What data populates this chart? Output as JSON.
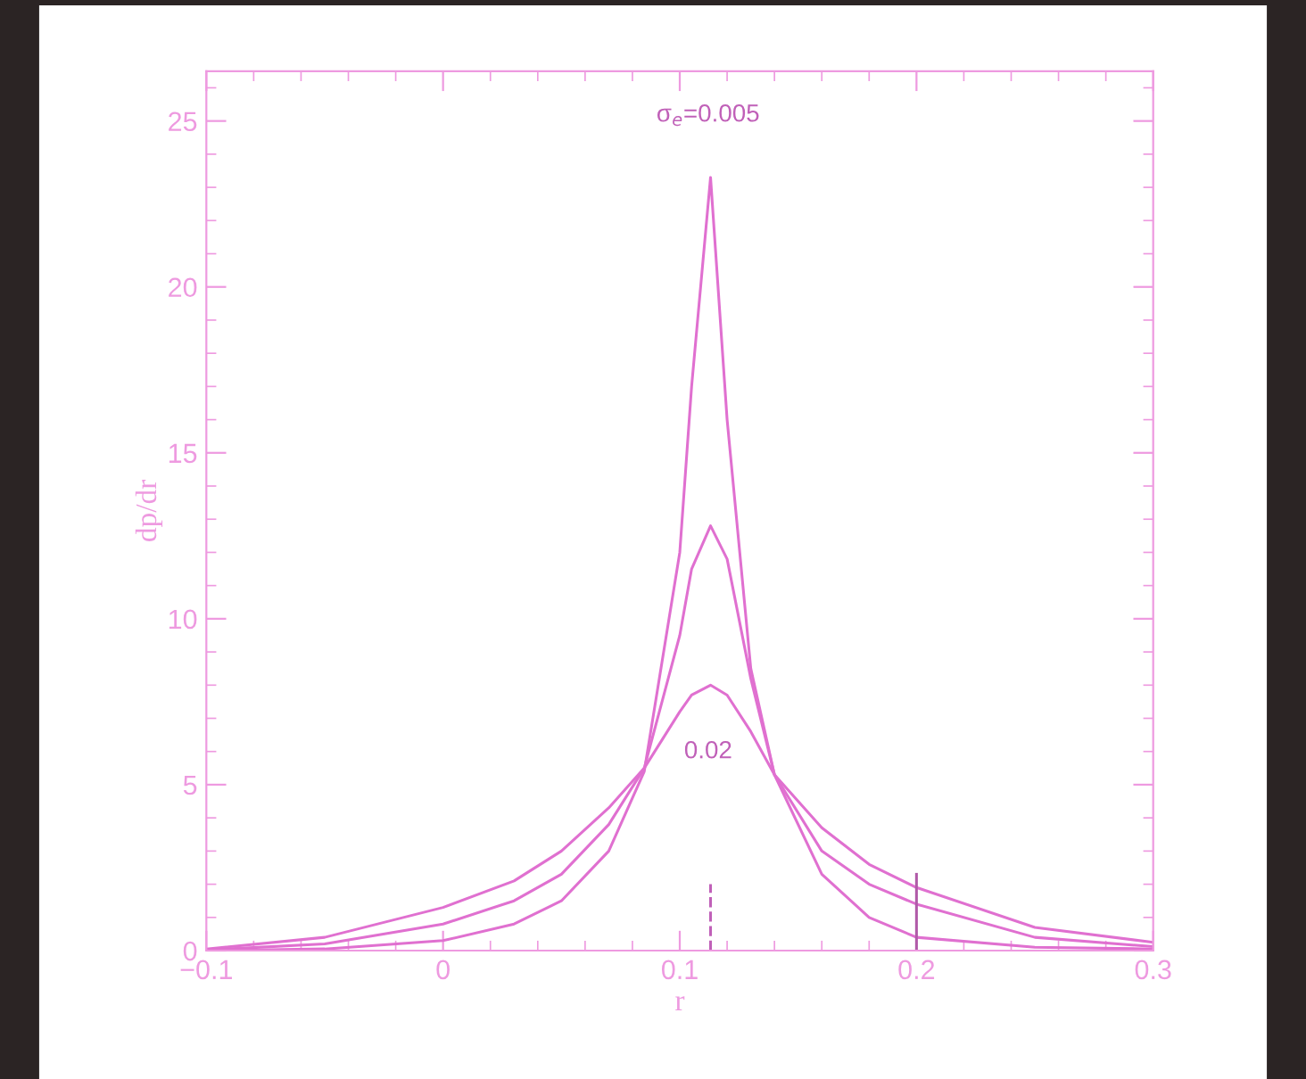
{
  "chart_data": {
    "type": "line",
    "xlabel": "r",
    "ylabel": "dp/dr",
    "xlim": [
      -0.1,
      0.3
    ],
    "ylim": [
      0,
      26.5
    ],
    "xticks": [
      {
        "value": -0.1,
        "label": "−0.1"
      },
      0,
      0.1,
      0.2,
      0.3
    ],
    "yticks": [
      0,
      5,
      10,
      15,
      20,
      25
    ],
    "grid": false,
    "marker": "none",
    "line_style": "solid",
    "series": [
      {
        "color": "#e070d0",
        "x": [
          -0.1,
          -0.05,
          0,
          0.03,
          0.05,
          0.07,
          0.085,
          0.1,
          0.105,
          0.113,
          0.12,
          0.13,
          0.14,
          0.16,
          0.18,
          0.2,
          0.25,
          0.3
        ],
        "values": [
          0,
          0.05,
          0.3,
          0.8,
          1.5,
          3.0,
          5.4,
          12,
          17,
          23.3,
          16,
          8.5,
          5.3,
          2.3,
          1.0,
          0.4,
          0.1,
          0.05
        ]
      },
      {
        "color": "#e070d0",
        "x": [
          -0.1,
          -0.05,
          0,
          0.03,
          0.05,
          0.07,
          0.085,
          0.1,
          0.105,
          0.113,
          0.12,
          0.13,
          0.14,
          0.16,
          0.18,
          0.2,
          0.25,
          0.3
        ],
        "values": [
          0.02,
          0.2,
          0.8,
          1.5,
          2.3,
          3.8,
          5.5,
          9.5,
          11.5,
          12.8,
          11.8,
          8.2,
          5.3,
          3.0,
          2.0,
          1.4,
          0.4,
          0.12
        ]
      },
      {
        "color": "#e070d0",
        "x": [
          -0.1,
          -0.05,
          0,
          0.03,
          0.05,
          0.07,
          0.085,
          0.1,
          0.105,
          0.113,
          0.12,
          0.13,
          0.14,
          0.16,
          0.18,
          0.2,
          0.25,
          0.3
        ],
        "values": [
          0.05,
          0.4,
          1.3,
          2.1,
          3.0,
          4.3,
          5.5,
          7.2,
          7.7,
          8.0,
          7.7,
          6.6,
          5.3,
          3.7,
          2.6,
          1.9,
          0.7,
          0.25
        ]
      },
      {
        "color": "#c060b8",
        "line_style": "dashed",
        "x": [
          0.113,
          0.113
        ],
        "values": [
          0,
          2.0
        ]
      },
      {
        "color": "#b05aa8",
        "x": [
          0.2,
          0.2
        ],
        "values": [
          0,
          2.3
        ]
      }
    ],
    "annotations": [
      "σ$_{e}$=0.005",
      "0.02"
    ]
  }
}
